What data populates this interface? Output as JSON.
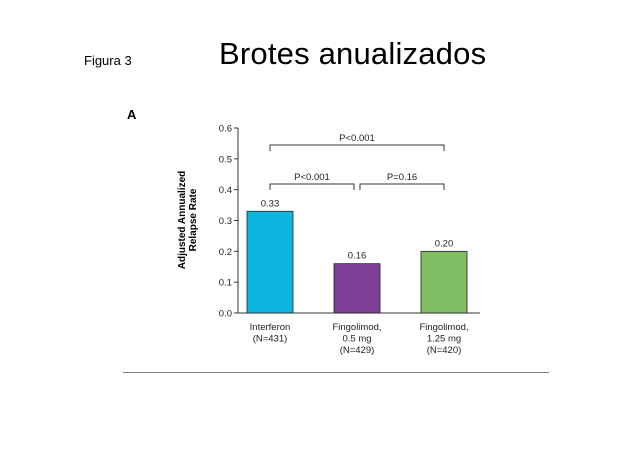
{
  "slide": {
    "figure_label": "Figura 3",
    "title": "Brotes anualizados",
    "panel_letter": "A"
  },
  "chart_data": {
    "type": "bar",
    "ylabel_lines": [
      "Adjusted Annualized",
      "Relapse Rate"
    ],
    "ylim": [
      0,
      0.6
    ],
    "yticks": [
      "0.0",
      "0.1",
      "0.2",
      "0.3",
      "0.4",
      "0.5",
      "0.6"
    ],
    "categories": [
      [
        "Interferon",
        "(N=431)"
      ],
      [
        "Fingolimod,",
        "0.5 mg",
        "(N=429)"
      ],
      [
        "Fingolimod,",
        "1.25 mg",
        "(N=420)"
      ]
    ],
    "values": [
      0.33,
      0.16,
      0.2
    ],
    "value_labels": [
      "0.33",
      "0.16",
      "0.20"
    ],
    "colors": [
      "#10b4e0",
      "#7e3f98",
      "#80bd63"
    ],
    "comparisons": [
      {
        "from": 0,
        "to": 2,
        "label": "P<0.001",
        "level": 2
      },
      {
        "from": 0,
        "to": 1,
        "label": "P<0.001",
        "level": 1
      },
      {
        "from": 1,
        "to": 2,
        "label": "P=0.16",
        "level": 1
      }
    ]
  }
}
